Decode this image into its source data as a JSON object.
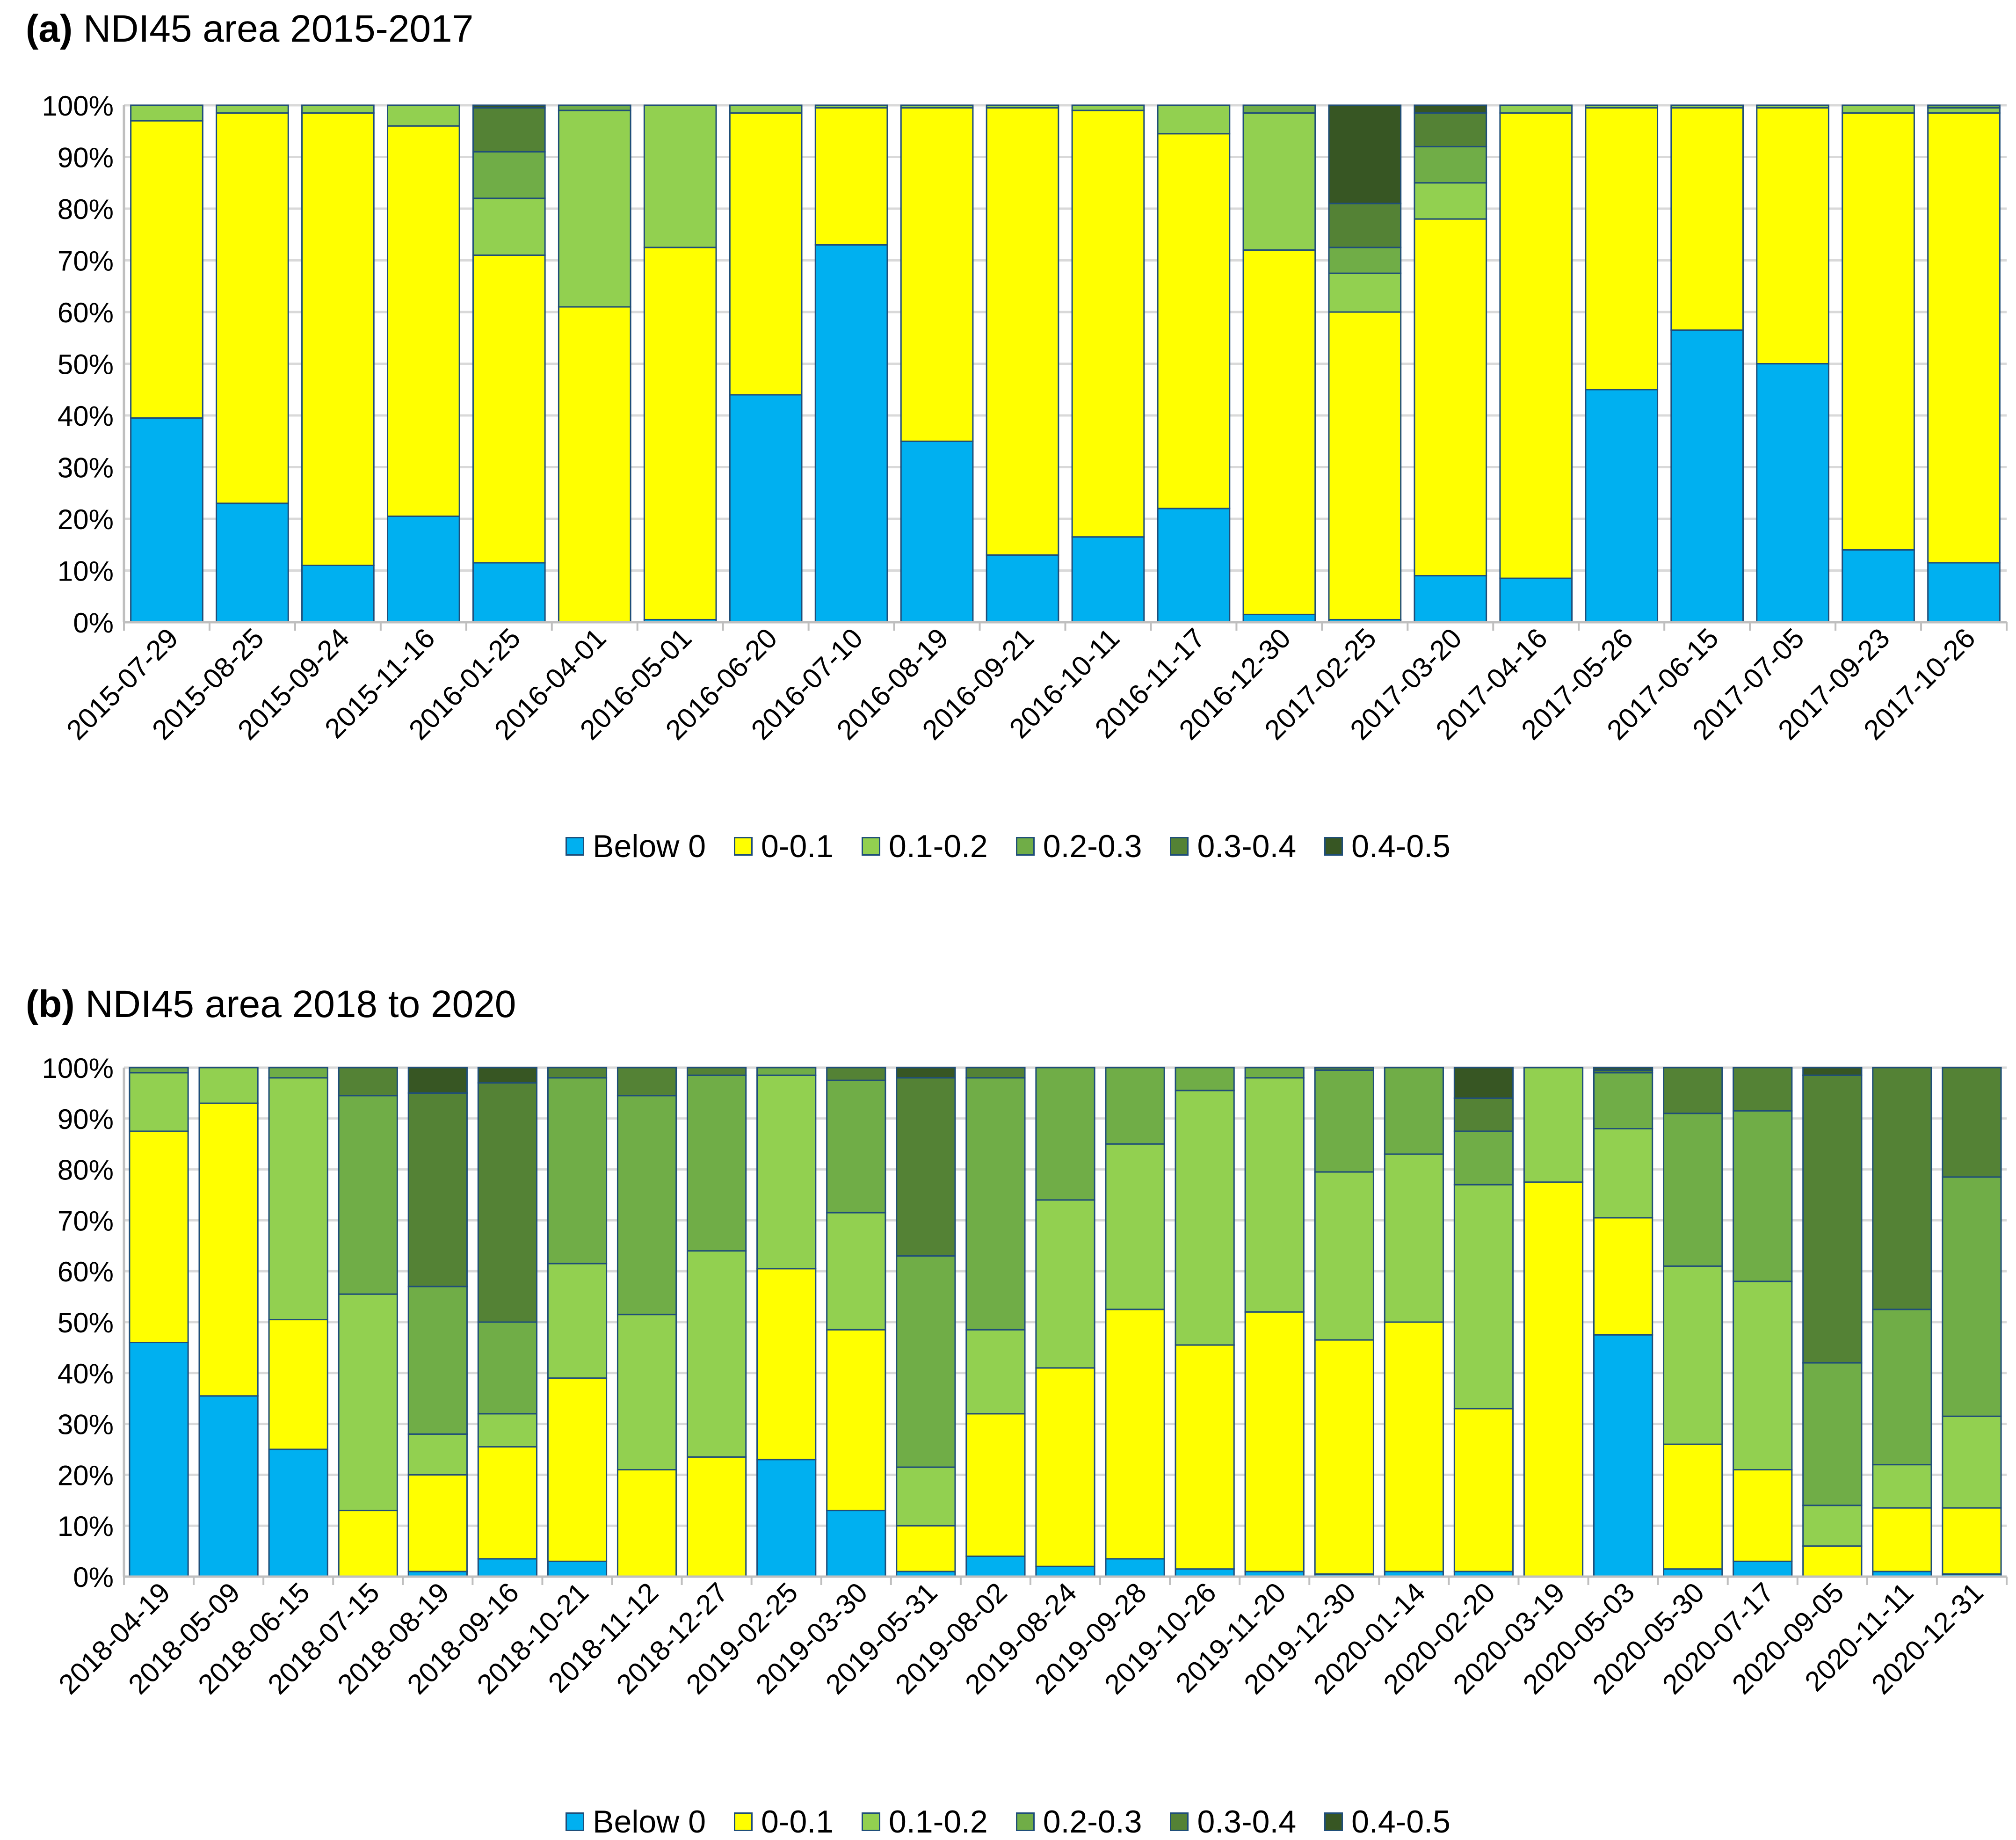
{
  "colors": {
    "Below 0": "#00b0f0",
    "0-0.1": "#ffff00",
    "0.1-0.2": "#92d050",
    "0.2-0.3": "#70ad47",
    "0.3-0.4": "#548235",
    "0.4-0.5": "#375623"
  },
  "chart_data": [
    {
      "type": "bar",
      "stacked": true,
      "title_prefix": "(a)",
      "title": "NDI45 area 2015-2017",
      "xlabel": "",
      "ylabel": "",
      "ylim": [
        0,
        100
      ],
      "yticks": [
        "0%",
        "10%",
        "20%",
        "30%",
        "40%",
        "50%",
        "60%",
        "70%",
        "80%",
        "90%",
        "100%"
      ],
      "categories": [
        "2015-07-29",
        "2015-08-25",
        "2015-09-24",
        "2015-11-16",
        "2016-01-25",
        "2016-04-01",
        "2016-05-01",
        "2016-06-20",
        "2016-07-10",
        "2016-08-19",
        "2016-09-21",
        "2016-10-11",
        "2016-11-17",
        "2016-12-30",
        "2017-02-25",
        "2017-03-20",
        "2017-04-16",
        "2017-05-26",
        "2017-06-15",
        "2017-07-05",
        "2017-09-23",
        "2017-10-26"
      ],
      "series": [
        {
          "name": "Below 0",
          "values": [
            39.5,
            23,
            11,
            20.5,
            11.5,
            0,
            0.5,
            44,
            73,
            35,
            13,
            16.5,
            22,
            1.5,
            0.5,
            9,
            8.5,
            45,
            56.5,
            50,
            14,
            11.5
          ]
        },
        {
          "name": "0-0.1",
          "values": [
            57.5,
            75.5,
            87.5,
            75.5,
            59.5,
            61,
            72,
            54.5,
            26.5,
            64.5,
            86.5,
            82.5,
            72.5,
            70.5,
            59.5,
            69,
            90,
            54.5,
            43,
            49.5,
            84.5,
            87
          ]
        },
        {
          "name": "0.1-0.2",
          "values": [
            3,
            1.5,
            1.5,
            4,
            11,
            38,
            27.5,
            1.5,
            0.5,
            0.5,
            0.5,
            1,
            5.5,
            26.5,
            7.5,
            7,
            1.5,
            0.5,
            0.5,
            0.5,
            1.5,
            1
          ]
        },
        {
          "name": "0.2-0.3",
          "values": [
            0,
            0,
            0,
            0,
            9,
            1,
            0,
            0,
            0,
            0,
            0,
            0,
            0,
            1.5,
            5,
            7,
            0,
            0,
            0,
            0,
            0,
            0.5
          ]
        },
        {
          "name": "0.3-0.4",
          "values": [
            0,
            0,
            0,
            0,
            8.5,
            0,
            0,
            0,
            0,
            0,
            0,
            0,
            0,
            0,
            8.5,
            6.5,
            0,
            0,
            0,
            0,
            0,
            0
          ]
        },
        {
          "name": "0.4-0.5",
          "values": [
            0,
            0,
            0,
            0,
            0.5,
            0,
            0,
            0,
            0,
            0,
            0,
            0,
            0,
            0,
            19,
            1.5,
            0,
            0,
            0,
            0,
            0,
            0
          ]
        }
      ],
      "legend": [
        "Below 0",
        "0-0.1",
        "0.1-0.2",
        "0.2-0.3",
        "0.3-0.4",
        "0.4-0.5"
      ],
      "legend_position": "bottom"
    },
    {
      "type": "bar",
      "stacked": true,
      "title_prefix": "(b)",
      "title": "NDI45 area 2018 to 2020",
      "xlabel": "",
      "ylabel": "",
      "ylim": [
        0,
        100
      ],
      "yticks": [
        "0%",
        "10%",
        "20%",
        "30%",
        "40%",
        "50%",
        "60%",
        "70%",
        "80%",
        "90%",
        "100%"
      ],
      "categories": [
        "2018-04-19",
        "2018-05-09",
        "2018-06-15",
        "2018-07-15",
        "2018-08-19",
        "2018-09-16",
        "2018-10-21",
        "2018-11-12",
        "2018-12-27",
        "2019-02-25",
        "2019-03-30",
        "2019-05-31",
        "2019-08-02",
        "2019-08-24",
        "2019-09-28",
        "2019-10-26",
        "2019-11-20",
        "2019-12-30",
        "2020-01-14",
        "2020-02-20",
        "2020-03-19",
        "2020-05-03",
        "2020-05-30",
        "2020-07-17",
        "2020-09-05",
        "2020-11-11",
        "2020-12-31"
      ],
      "series": [
        {
          "name": "Below 0",
          "values": [
            46,
            35.5,
            25,
            0,
            1,
            3.5,
            3,
            0,
            0,
            23,
            13,
            1,
            4,
            2,
            3.5,
            1.5,
            1,
            0.5,
            1,
            1,
            0,
            47.5,
            1.5,
            3,
            0,
            1,
            0.5
          ]
        },
        {
          "name": "0-0.1",
          "values": [
            41.5,
            57.5,
            25.5,
            13,
            19,
            22,
            36,
            21,
            23.5,
            37.5,
            35.5,
            9,
            28,
            39,
            49,
            44,
            51,
            46,
            49,
            32,
            77.5,
            23,
            24.5,
            18,
            6,
            12.5,
            13
          ]
        },
        {
          "name": "0.1-0.2",
          "values": [
            11.5,
            7,
            47.5,
            42.5,
            8,
            6.5,
            22.5,
            30.5,
            40.5,
            38,
            23,
            11.5,
            16.5,
            33,
            32.5,
            50,
            46,
            33,
            33,
            44,
            22.5,
            17.5,
            35,
            37,
            8,
            8.5,
            18
          ]
        },
        {
          "name": "0.2-0.3",
          "values": [
            1,
            0,
            2,
            39,
            29,
            18,
            36.5,
            43,
            34.5,
            1.5,
            26,
            41.5,
            49.5,
            26,
            15,
            4.5,
            2,
            20,
            17,
            10.5,
            0,
            11,
            30,
            33.5,
            28,
            30.5,
            47
          ]
        },
        {
          "name": "0.3-0.4",
          "values": [
            0,
            0,
            0,
            5.5,
            38,
            47,
            2,
            5.5,
            1.5,
            0,
            2.5,
            35,
            2,
            0,
            0,
            0,
            0,
            0.5,
            0,
            6.5,
            0,
            0.5,
            9,
            8.5,
            56.5,
            47.5,
            21.5
          ]
        },
        {
          "name": "0.4-0.5",
          "values": [
            0,
            0,
            0,
            0,
            5,
            3,
            0,
            0,
            0,
            0,
            0,
            2,
            0,
            0,
            0,
            0,
            0,
            0,
            0,
            6,
            0,
            0.5,
            0,
            0,
            1.5,
            0,
            0
          ]
        }
      ],
      "legend": [
        "Below 0",
        "0-0.1",
        "0.1-0.2",
        "0.2-0.3",
        "0.3-0.4",
        "0.4-0.5"
      ],
      "legend_position": "bottom"
    }
  ]
}
